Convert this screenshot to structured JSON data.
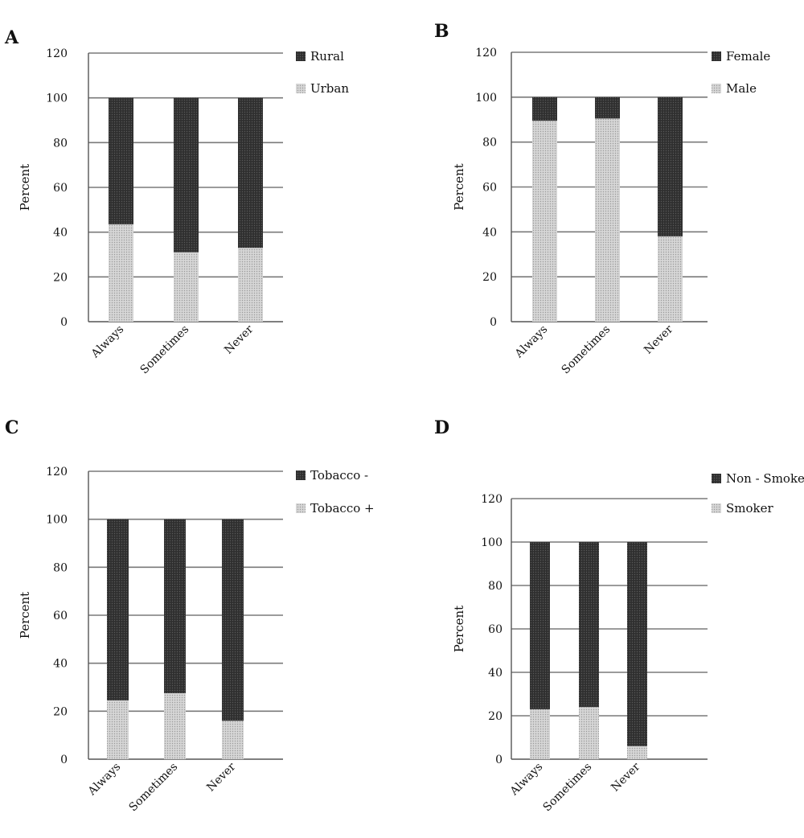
{
  "colors": {
    "dark": "#3a3a3a",
    "light": "#c6c6c6",
    "grid": "#7a7a7a",
    "axis": "#555555"
  },
  "chart_data": [
    {
      "panel": "A",
      "type": "bar",
      "stacked": true,
      "categories": [
        "Always",
        "Sometimes",
        "Never"
      ],
      "series": [
        {
          "name": "Urban",
          "values": [
            43.5,
            31,
            33
          ]
        },
        {
          "name": "Rural",
          "values": [
            56.5,
            69,
            67
          ]
        }
      ],
      "legend": [
        "Rural",
        "Urban"
      ],
      "ylabel": "Percent",
      "ylim": [
        0,
        120
      ],
      "yticks": [
        0,
        20,
        40,
        60,
        80,
        100,
        120
      ],
      "grid": true,
      "legend_position": "top-right"
    },
    {
      "panel": "B",
      "type": "bar",
      "stacked": true,
      "categories": [
        "Always",
        "Sometimes",
        "Never"
      ],
      "series": [
        {
          "name": "Male",
          "values": [
            89.5,
            90.5,
            38
          ]
        },
        {
          "name": "Female",
          "values": [
            10.5,
            9.5,
            62
          ]
        }
      ],
      "legend": [
        "Female",
        "Male"
      ],
      "ylabel": "Percent",
      "ylim": [
        0,
        120
      ],
      "yticks": [
        0,
        20,
        40,
        60,
        80,
        100,
        120
      ],
      "grid": true,
      "legend_position": "top-right"
    },
    {
      "panel": "C",
      "type": "bar",
      "stacked": true,
      "categories": [
        "Always",
        "Sometimes",
        "Never"
      ],
      "series": [
        {
          "name": "Tobacco +",
          "values": [
            24.5,
            27.5,
            16
          ]
        },
        {
          "name": "Tobacco -",
          "values": [
            75.5,
            72.5,
            84
          ]
        }
      ],
      "legend": [
        "Tobacco -",
        "Tobacco +"
      ],
      "ylabel": "Percent",
      "ylim": [
        0,
        120
      ],
      "yticks": [
        0,
        20,
        40,
        60,
        80,
        100,
        120
      ],
      "grid": true,
      "legend_position": "top-right"
    },
    {
      "panel": "D",
      "type": "bar",
      "stacked": true,
      "categories": [
        "Always",
        "Sometimes",
        "Never"
      ],
      "series": [
        {
          "name": "Smoker",
          "values": [
            23,
            24,
            6
          ]
        },
        {
          "name": "Non - Smoker",
          "values": [
            77,
            76,
            94
          ]
        }
      ],
      "legend": [
        "Non - Smoker",
        "Smoker"
      ],
      "ylabel": "Percent",
      "ylim": [
        0,
        120
      ],
      "yticks": [
        0,
        20,
        40,
        60,
        80,
        100,
        120
      ],
      "grid": true,
      "legend_position": "top-right"
    }
  ]
}
